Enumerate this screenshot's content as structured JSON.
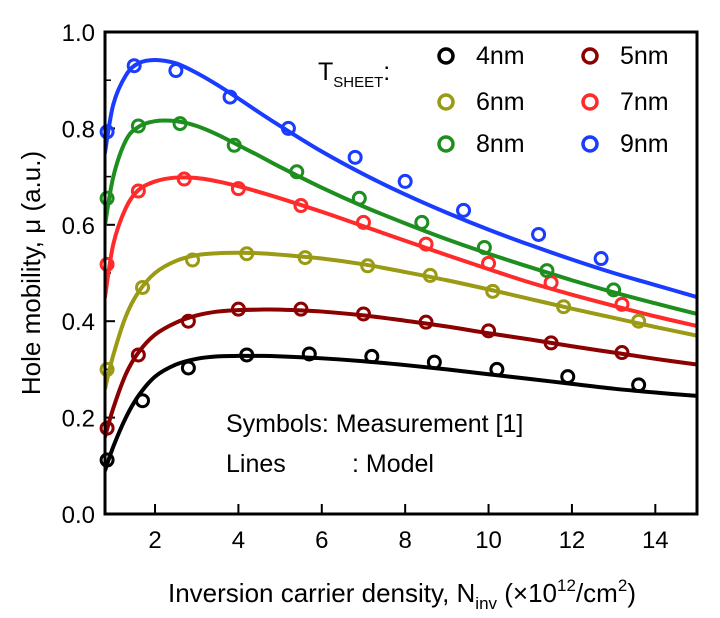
{
  "chart_data": {
    "type": "line",
    "title": "",
    "xlabel_main": "Inversion carrier density, N",
    "xlabel_sub": "inv",
    "xlabel_unit_pre": " (×10",
    "xlabel_unit_sup": "12",
    "xlabel_unit_post": "/cm",
    "xlabel_unit_sup2": "2",
    "xlabel_unit_end": ")",
    "ylabel": "Hole mobility, μ (a.u.)",
    "xlim": [
      0.8,
      15
    ],
    "ylim": [
      0,
      1.0
    ],
    "xticks": [
      2,
      4,
      6,
      8,
      10,
      12,
      14
    ],
    "xtick_labels": [
      "2",
      "4",
      "6",
      "8",
      "10",
      "12",
      "14"
    ],
    "yticks": [
      0.0,
      0.2,
      0.4,
      0.6,
      0.8,
      1.0
    ],
    "ytick_labels": [
      "0.0",
      "0.2",
      "0.4",
      "0.6",
      "0.8",
      "1.0"
    ],
    "legend_title": "T",
    "legend_title_sub": "SHEET",
    "legend_title_colon": ":",
    "legend_position": "top-right",
    "annotation_symbols": "Symbols: Measurement [1]",
    "annotation_lines_a": "Lines",
    "annotation_lines_b": ": Model",
    "series": [
      {
        "name": "4nm",
        "color": "#000000",
        "markers": {
          "x": [
            0.85,
            1.7,
            2.8,
            4.2,
            5.7,
            7.2,
            8.7,
            10.2,
            11.9,
            13.6
          ],
          "y": [
            0.112,
            0.235,
            0.303,
            0.33,
            0.332,
            0.327,
            0.315,
            0.3,
            0.285,
            0.268
          ]
        },
        "line": {
          "x": [
            0.8,
            1.0,
            1.3,
            1.6,
            2.0,
            2.5,
            3.0,
            3.5,
            4.0,
            4.5,
            5,
            6,
            7,
            8,
            9,
            10,
            11,
            12,
            13,
            14,
            15
          ],
          "y": [
            0.09,
            0.14,
            0.2,
            0.245,
            0.285,
            0.31,
            0.322,
            0.327,
            0.328,
            0.328,
            0.327,
            0.323,
            0.317,
            0.309,
            0.3,
            0.29,
            0.28,
            0.27,
            0.26,
            0.252,
            0.245
          ]
        }
      },
      {
        "name": "5nm",
        "color": "#8b0000",
        "markers": {
          "x": [
            0.85,
            1.6,
            2.8,
            4.0,
            5.5,
            7.0,
            8.5,
            10.0,
            11.5,
            13.2
          ],
          "y": [
            0.178,
            0.33,
            0.4,
            0.425,
            0.425,
            0.415,
            0.398,
            0.38,
            0.355,
            0.335
          ]
        },
        "line": {
          "x": [
            0.8,
            1.0,
            1.3,
            1.6,
            2.0,
            2.5,
            3.0,
            3.5,
            4.0,
            4.5,
            5,
            6,
            7,
            8,
            9,
            10,
            11,
            12,
            13,
            14,
            15
          ],
          "y": [
            0.16,
            0.22,
            0.29,
            0.335,
            0.372,
            0.397,
            0.412,
            0.42,
            0.423,
            0.424,
            0.424,
            0.42,
            0.412,
            0.401,
            0.389,
            0.375,
            0.362,
            0.348,
            0.335,
            0.322,
            0.31
          ]
        }
      },
      {
        "name": "6nm",
        "color": "#9a9a14",
        "markers": {
          "x": [
            0.85,
            1.7,
            2.9,
            4.2,
            5.6,
            7.1,
            8.6,
            10.1,
            11.8,
            13.6
          ],
          "y": [
            0.3,
            0.47,
            0.527,
            0.54,
            0.532,
            0.515,
            0.495,
            0.462,
            0.43,
            0.4
          ]
        },
        "line": {
          "x": [
            0.8,
            1.0,
            1.3,
            1.6,
            2.0,
            2.5,
            3.0,
            3.5,
            4.0,
            4.5,
            5,
            6,
            7,
            8,
            9,
            10,
            11,
            12,
            13,
            14,
            15
          ],
          "y": [
            0.26,
            0.33,
            0.41,
            0.46,
            0.5,
            0.525,
            0.537,
            0.541,
            0.542,
            0.541,
            0.538,
            0.53,
            0.518,
            0.502,
            0.485,
            0.466,
            0.446,
            0.426,
            0.407,
            0.388,
            0.37
          ]
        }
      },
      {
        "name": "7nm",
        "color": "#ff2a2a",
        "markers": {
          "x": [
            0.85,
            1.6,
            2.7,
            4.0,
            5.5,
            7.0,
            8.5,
            10.0,
            11.5,
            13.2
          ],
          "y": [
            0.518,
            0.67,
            0.695,
            0.675,
            0.64,
            0.605,
            0.56,
            0.52,
            0.48,
            0.435
          ]
        },
        "line": {
          "x": [
            0.8,
            1.0,
            1.3,
            1.6,
            2.0,
            2.5,
            3.0,
            3.5,
            4.0,
            4.5,
            5,
            6,
            7,
            8,
            9,
            10,
            11,
            12,
            13,
            14,
            15
          ],
          "y": [
            0.45,
            0.56,
            0.635,
            0.672,
            0.69,
            0.698,
            0.697,
            0.69,
            0.68,
            0.668,
            0.655,
            0.627,
            0.597,
            0.567,
            0.537,
            0.508,
            0.48,
            0.455,
            0.432,
            0.41,
            0.39
          ]
        }
      },
      {
        "name": "8nm",
        "color": "#1e8f1e",
        "markers": {
          "x": [
            0.85,
            1.6,
            2.6,
            3.9,
            5.4,
            6.9,
            8.4,
            9.9,
            11.4,
            13.0
          ],
          "y": [
            0.655,
            0.805,
            0.81,
            0.765,
            0.71,
            0.655,
            0.605,
            0.553,
            0.505,
            0.465
          ]
        },
        "line": {
          "x": [
            0.8,
            1.0,
            1.3,
            1.6,
            2.0,
            2.5,
            3.0,
            3.5,
            4.0,
            4.5,
            5,
            6,
            7,
            8,
            9,
            10,
            11,
            12,
            13,
            14,
            15
          ],
          "y": [
            0.6,
            0.7,
            0.775,
            0.803,
            0.815,
            0.815,
            0.805,
            0.787,
            0.765,
            0.743,
            0.72,
            0.677,
            0.638,
            0.603,
            0.57,
            0.54,
            0.512,
            0.485,
            0.46,
            0.437,
            0.415
          ]
        }
      },
      {
        "name": "9nm",
        "color": "#1a3cff",
        "markers": {
          "x": [
            0.85,
            1.5,
            2.5,
            3.8,
            5.2,
            6.8,
            8.0,
            9.4,
            11.2,
            12.7
          ],
          "y": [
            0.793,
            0.93,
            0.92,
            0.865,
            0.8,
            0.74,
            0.69,
            0.63,
            0.58,
            0.53
          ]
        },
        "line": {
          "x": [
            0.8,
            1.0,
            1.3,
            1.6,
            2.0,
            2.5,
            3.0,
            3.5,
            4.0,
            4.5,
            5,
            6,
            7,
            8,
            9,
            10,
            11,
            12,
            13,
            14,
            15
          ],
          "y": [
            0.75,
            0.85,
            0.91,
            0.935,
            0.942,
            0.935,
            0.915,
            0.89,
            0.862,
            0.833,
            0.805,
            0.752,
            0.705,
            0.663,
            0.625,
            0.59,
            0.558,
            0.528,
            0.5,
            0.475,
            0.45
          ]
        }
      }
    ]
  }
}
